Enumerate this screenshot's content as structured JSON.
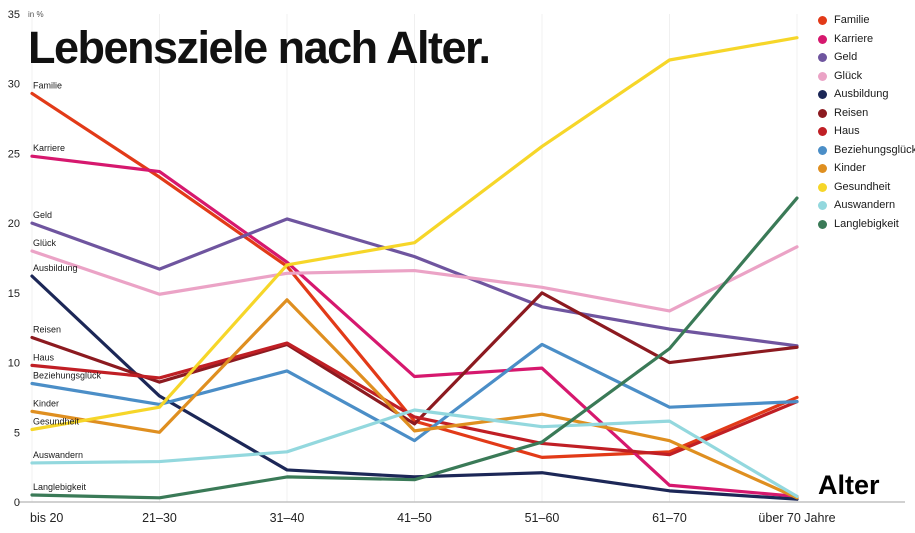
{
  "chart_data": {
    "type": "line",
    "title": "Lebensziele nach Alter.",
    "xlabel": "Alter",
    "ylabel": "in %",
    "ylim": [
      0,
      35
    ],
    "yticks": [
      0,
      5,
      10,
      15,
      20,
      25,
      30,
      35
    ],
    "grid": "faint-vertical",
    "legend_position": "top-right",
    "categories": [
      "bis 20",
      "21–30",
      "31–40",
      "41–50",
      "51–60",
      "61–70",
      "über 70 Jahre"
    ],
    "series": [
      {
        "name": "Familie",
        "color": "#e23a18",
        "values": [
          29.3,
          23.3,
          16.9,
          5.8,
          3.2,
          3.6,
          7.5
        ]
      },
      {
        "name": "Karriere",
        "color": "#d6186e",
        "values": [
          24.8,
          23.7,
          17.2,
          9.0,
          9.6,
          1.2,
          0.4
        ]
      },
      {
        "name": "Geld",
        "color": "#6f559f",
        "values": [
          20.0,
          16.7,
          20.3,
          17.6,
          14.0,
          12.4,
          11.2
        ]
      },
      {
        "name": "Glück",
        "color": "#eba3c6",
        "values": [
          18.0,
          14.9,
          16.4,
          16.6,
          15.4,
          13.7,
          18.3
        ]
      },
      {
        "name": "Ausbildung",
        "color": "#1c2757",
        "values": [
          16.2,
          7.6,
          2.3,
          1.8,
          2.1,
          0.8,
          0.2
        ]
      },
      {
        "name": "Reisen",
        "color": "#8c1a20",
        "values": [
          11.8,
          8.6,
          11.3,
          5.6,
          15.0,
          10.0,
          11.1
        ]
      },
      {
        "name": "Haus",
        "color": "#c01f25",
        "values": [
          9.8,
          8.9,
          11.4,
          6.1,
          4.2,
          3.4,
          7.2
        ]
      },
      {
        "name": "Beziehungsglück",
        "color": "#4b8ec7",
        "values": [
          8.5,
          7.0,
          9.4,
          4.4,
          11.3,
          6.8,
          7.2
        ]
      },
      {
        "name": "Kinder",
        "color": "#df8f20",
        "values": [
          6.5,
          5.0,
          14.5,
          5.1,
          6.3,
          4.4,
          0.3
        ]
      },
      {
        "name": "Gesundheit",
        "color": "#f6d629",
        "values": [
          5.2,
          6.8,
          17.0,
          18.6,
          25.5,
          31.7,
          33.3
        ]
      },
      {
        "name": "Auswandern",
        "color": "#93d8de",
        "values": [
          2.8,
          2.9,
          3.6,
          6.6,
          5.4,
          5.8,
          0.4
        ]
      },
      {
        "name": "Langlebigkeit",
        "color": "#3a7a57",
        "values": [
          0.5,
          0.3,
          1.8,
          1.6,
          4.3,
          11.0,
          21.8
        ]
      }
    ]
  }
}
